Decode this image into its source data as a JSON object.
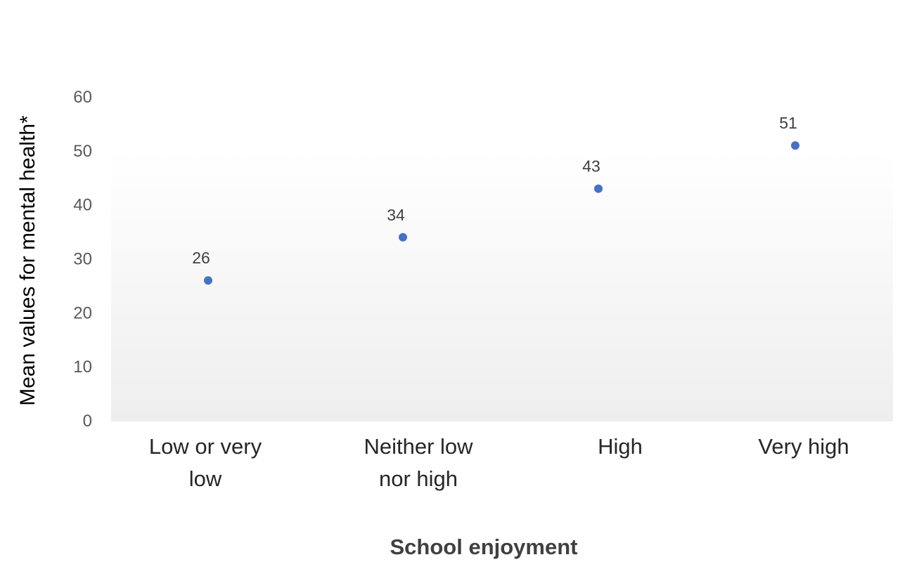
{
  "chart_data": {
    "type": "scatter",
    "title": "",
    "xlabel": "School enjoyment",
    "ylabel": "Mean values for mental health*",
    "categories": [
      [
        "Low or very",
        "low"
      ],
      [
        "Neither low",
        "nor high"
      ],
      [
        "High"
      ],
      [
        "Very high"
      ]
    ],
    "values": [
      26,
      34,
      43,
      51
    ],
    "data_labels": [
      "26",
      "34",
      "43",
      "51"
    ],
    "ylim": [
      0,
      60
    ],
    "yticks": [
      0,
      10,
      20,
      30,
      40,
      50,
      60
    ],
    "grid": false,
    "legend": "none",
    "point_color": "#4472C4",
    "plot_background": "gradient white to light gray"
  }
}
